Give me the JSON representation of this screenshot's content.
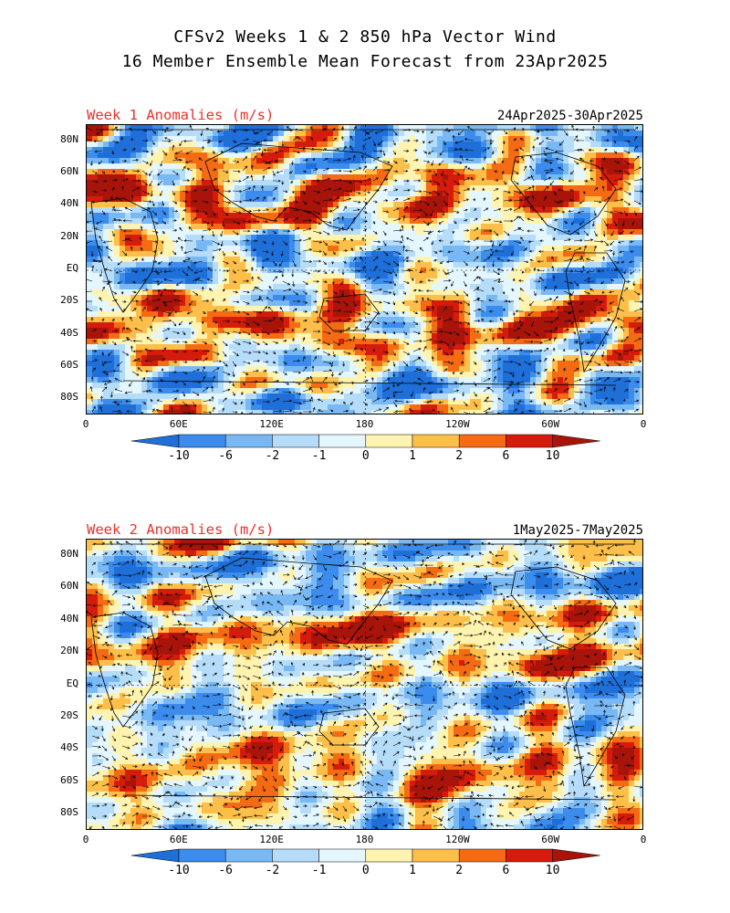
{
  "header": {
    "line1": "CFSv2 Weeks 1 & 2 850 hPa Vector Wind",
    "line2": "16 Member Ensemble Mean Forecast from 23Apr2025"
  },
  "panels": [
    {
      "title": "Week 1 Anomalies (m/s)",
      "dates": "24Apr2025-30Apr2025"
    },
    {
      "title": "Week 2 Anomalies (m/s)",
      "dates": "1May2025-7May2025"
    }
  ],
  "axes": {
    "lat_labels": [
      "80N",
      "60N",
      "40N",
      "20N",
      "EQ",
      "20S",
      "40S",
      "60S",
      "80S"
    ],
    "lon_labels": [
      "0",
      "60E",
      "120E",
      "180",
      "120W",
      "60W",
      "0"
    ]
  },
  "colorbar": {
    "labels": [
      "-10",
      "-6",
      "-2",
      "-1",
      "0",
      "1",
      "2",
      "6",
      "10"
    ],
    "colors": [
      "#1f6fd9",
      "#3b8cec",
      "#78b9f5",
      "#b5dcf9",
      "#e4f7ff",
      "#fff3b0",
      "#fdbf4a",
      "#f56b14",
      "#d51c0c",
      "#a8140a"
    ]
  },
  "colors": {
    "title_red": "#e8312a",
    "continents": "#000000",
    "vectors": "#000000"
  }
}
